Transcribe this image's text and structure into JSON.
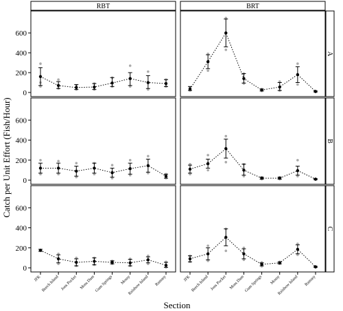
{
  "chart_data": {
    "type": "line",
    "title": "",
    "xlabel": "Section",
    "ylabel": "Catch per Unit Effort (Fish/Hour)",
    "ylim": [
      0,
      780
    ],
    "yticks": [
      0,
      200,
      400,
      600
    ],
    "grid": false,
    "line_style": "dotted",
    "columns": [
      "RBT",
      "BRT"
    ],
    "rows": [
      "A",
      "B",
      "C"
    ],
    "categories": [
      "JFK",
      "Beech Island",
      "Jons Pocket",
      "Moss Dam",
      "Gum Springs",
      "Mossy",
      "Rainbow Island",
      "Ramsey"
    ],
    "panels": [
      {
        "column": "RBT",
        "row": "A",
        "mean": [
          160,
          70,
          50,
          55,
          95,
          140,
          100,
          90
        ],
        "lower": [
          70,
          40,
          30,
          30,
          60,
          70,
          40,
          60
        ],
        "upper": [
          250,
          110,
          80,
          90,
          150,
          200,
          170,
          130
        ],
        "points": [
          [
            60,
            100,
            290
          ],
          [
            40,
            70,
            130
          ],
          [
            30,
            50,
            70
          ],
          [
            30,
            50,
            90
          ],
          [
            60,
            95,
            150
          ],
          [
            60,
            140,
            270
          ],
          [
            30,
            100,
            210
          ],
          [
            60,
            90,
            130
          ]
        ]
      },
      {
        "column": "BRT",
        "row": "A",
        "mean": [
          35,
          310,
          600,
          140,
          25,
          55,
          180,
          10
        ],
        "lower": [
          20,
          240,
          460,
          95,
          15,
          20,
          100,
          5
        ],
        "upper": [
          60,
          380,
          740,
          190,
          35,
          100,
          260,
          15
        ],
        "points": [
          [
            20,
            35,
            50
          ],
          [
            220,
            310,
            390
          ],
          [
            430,
            600,
            750
          ],
          [
            90,
            140,
            190
          ],
          [
            15,
            25,
            35
          ],
          [
            20,
            55,
            110
          ],
          [
            80,
            180,
            290
          ],
          [
            5,
            10,
            15
          ]
        ]
      },
      {
        "column": "RBT",
        "row": "B",
        "mean": [
          120,
          120,
          90,
          120,
          75,
          115,
          145,
          40
        ],
        "lower": [
          70,
          70,
          40,
          70,
          30,
          60,
          80,
          20
        ],
        "upper": [
          170,
          170,
          140,
          170,
          120,
          170,
          210,
          60
        ],
        "points": [
          [
            60,
            120,
            200
          ],
          [
            60,
            120,
            190
          ],
          [
            30,
            90,
            170
          ],
          [
            60,
            120,
            170
          ],
          [
            20,
            75,
            150
          ],
          [
            50,
            115,
            200
          ],
          [
            70,
            145,
            240
          ],
          [
            20,
            40,
            60
          ]
        ]
      },
      {
        "column": "BRT",
        "row": "B",
        "mean": [
          110,
          165,
          315,
          100,
          20,
          20,
          95,
          10
        ],
        "lower": [
          70,
          120,
          220,
          50,
          10,
          10,
          50,
          5
        ],
        "upper": [
          150,
          210,
          410,
          160,
          30,
          30,
          140,
          15
        ],
        "points": [
          [
            60,
            110,
            160
          ],
          [
            100,
            165,
            250
          ],
          [
            180,
            315,
            440
          ],
          [
            40,
            100,
            160
          ],
          [
            10,
            20,
            30
          ],
          [
            10,
            20,
            30
          ],
          [
            40,
            95,
            200
          ],
          [
            5,
            10,
            15
          ]
        ]
      },
      {
        "column": "RBT",
        "row": "C",
        "mean": [
          175,
          90,
          55,
          65,
          55,
          50,
          80,
          25
        ],
        "lower": [
          165,
          50,
          20,
          30,
          40,
          20,
          50,
          5
        ],
        "upper": [
          185,
          130,
          90,
          100,
          70,
          85,
          110,
          55
        ],
        "points": [
          [
            170,
            175,
            180
          ],
          [
            40,
            90,
            140
          ],
          [
            20,
            55,
            100
          ],
          [
            30,
            65,
            100
          ],
          [
            40,
            55,
            70
          ],
          [
            20,
            50,
            90
          ],
          [
            40,
            80,
            120
          ],
          [
            5,
            25,
            60
          ]
        ]
      },
      {
        "column": "BRT",
        "row": "C",
        "mean": [
          90,
          140,
          305,
          140,
          35,
          50,
          185,
          10
        ],
        "lower": [
          60,
          80,
          220,
          90,
          20,
          40,
          140,
          5
        ],
        "upper": [
          120,
          200,
          390,
          190,
          50,
          60,
          230,
          15
        ],
        "points": [
          [
            60,
            90,
            120
          ],
          [
            70,
            140,
            220
          ],
          [
            170,
            305,
            390
          ],
          [
            80,
            140,
            200
          ],
          [
            15,
            35,
            55
          ],
          [
            40,
            50,
            60
          ],
          [
            130,
            185,
            240
          ],
          [
            5,
            10,
            15
          ]
        ]
      }
    ],
    "colors": {
      "mean": "#000000",
      "raw_points": "#aaaaaa",
      "strip_fill": "#ffffff",
      "strip_border": "#000000"
    }
  }
}
